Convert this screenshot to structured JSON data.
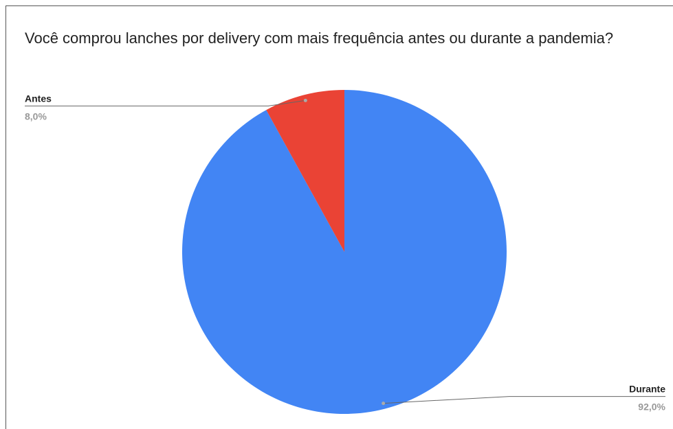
{
  "chart_data": {
    "type": "pie",
    "title": "Você comprou lanches por delivery com mais frequência antes ou durante a pandemia?",
    "categories": [
      "Durante",
      "Antes"
    ],
    "values": [
      92,
      8
    ],
    "value_labels": [
      "92,0%",
      "8,0%"
    ],
    "colors": [
      "#4285f4",
      "#ea4335"
    ]
  }
}
